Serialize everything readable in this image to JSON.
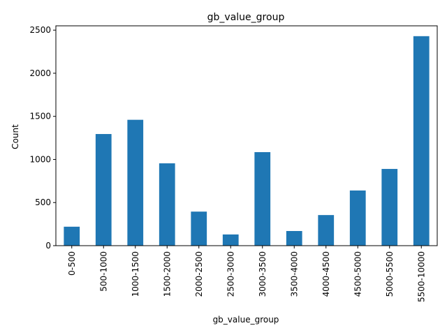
{
  "chart_data": {
    "type": "bar",
    "title": "gb_value_group",
    "xlabel": "gb_value_group",
    "ylabel": "Count",
    "categories": [
      "0-500",
      "500-1000",
      "1000-1500",
      "1500-2000",
      "2000-2500",
      "2500-3000",
      "3000-3500",
      "3500-4000",
      "4000-4500",
      "4500-5000",
      "5000-5500",
      "5500-10000"
    ],
    "values": [
      220,
      1295,
      1460,
      955,
      395,
      130,
      1085,
      170,
      355,
      640,
      890,
      2430
    ],
    "yticks": [
      0,
      500,
      1000,
      1500,
      2000,
      2500
    ],
    "ylim": [
      0,
      2550
    ],
    "grid": false,
    "legend": "none",
    "bar_color": "#1f77b4"
  }
}
